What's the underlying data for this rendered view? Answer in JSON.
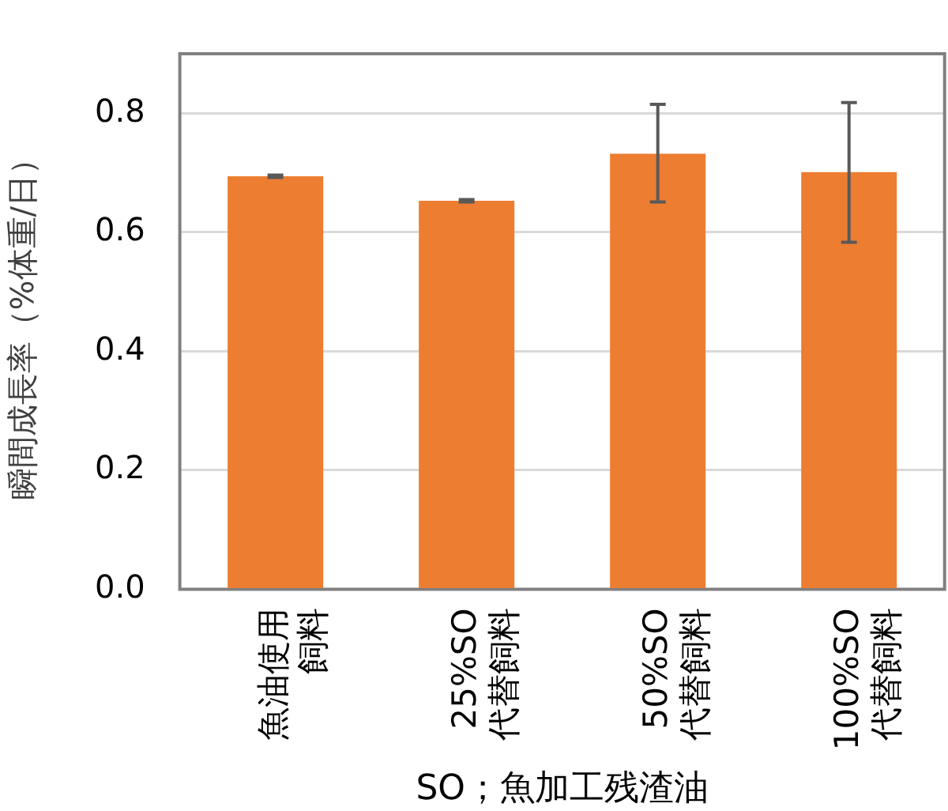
{
  "chart_data": {
    "type": "bar",
    "ylabel": "瞬間成長率（%体重/日）",
    "xlabel": "SO；魚加工残渣油",
    "categories": [
      "魚油使用飼料",
      "25%SO代替飼料",
      "50%SO代替飼料",
      "100%SO代替飼料"
    ],
    "values": [
      0.694,
      0.653,
      0.732,
      0.701
    ],
    "color": "#ed7d31",
    "errors": [
      0.002,
      0.002,
      [
        0.651,
        0.815
      ],
      [
        0.583,
        0.818
      ]
    ],
    "ylim": [
      0,
      0.9
    ],
    "yticks": [
      {
        "value": 0,
        "label": "0.0"
      },
      {
        "value": 0.2,
        "label": "0.2"
      },
      {
        "value": 0.4,
        "label": "0.4"
      },
      {
        "value": 0.6,
        "label": "0.6"
      },
      {
        "value": 0.8,
        "label": "0.8"
      }
    ],
    "grid": "y",
    "legend": false
  }
}
